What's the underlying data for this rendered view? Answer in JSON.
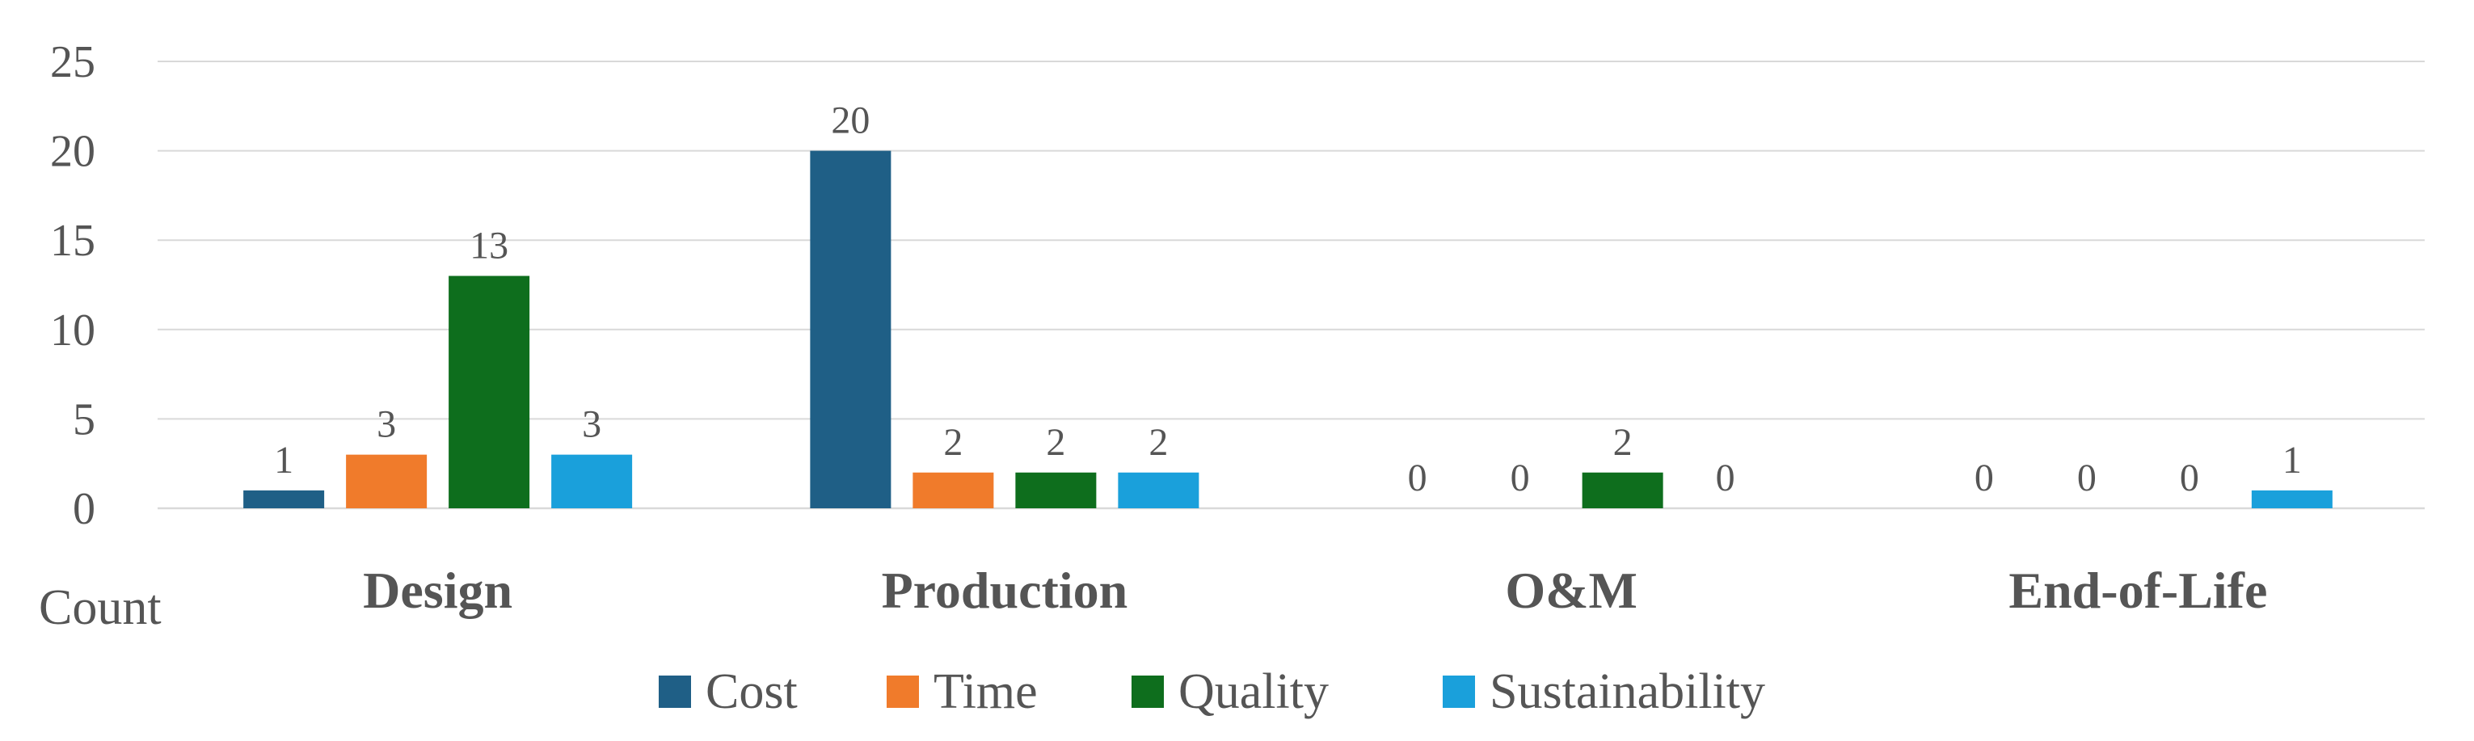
{
  "chart_data": {
    "type": "bar",
    "categories": [
      "Design",
      "Production",
      "O&M",
      "End-of-Life"
    ],
    "series": [
      {
        "name": "Cost",
        "color": "#1f5f86",
        "values": [
          1,
          20,
          0,
          0
        ]
      },
      {
        "name": "Time",
        "color": "#f07b2b",
        "values": [
          3,
          2,
          0,
          0
        ]
      },
      {
        "name": "Quality",
        "color": "#0e6e1d",
        "values": [
          13,
          2,
          2,
          0
        ]
      },
      {
        "name": "Sustainability",
        "color": "#1aa0db",
        "values": [
          3,
          2,
          0,
          1
        ]
      }
    ],
    "ylabel": "Count",
    "ylim": [
      0,
      25
    ],
    "yticks": [
      "0",
      "5",
      "10",
      "15",
      "20",
      "25"
    ],
    "grid": true,
    "legend": "bottom",
    "data_labels": true
  }
}
